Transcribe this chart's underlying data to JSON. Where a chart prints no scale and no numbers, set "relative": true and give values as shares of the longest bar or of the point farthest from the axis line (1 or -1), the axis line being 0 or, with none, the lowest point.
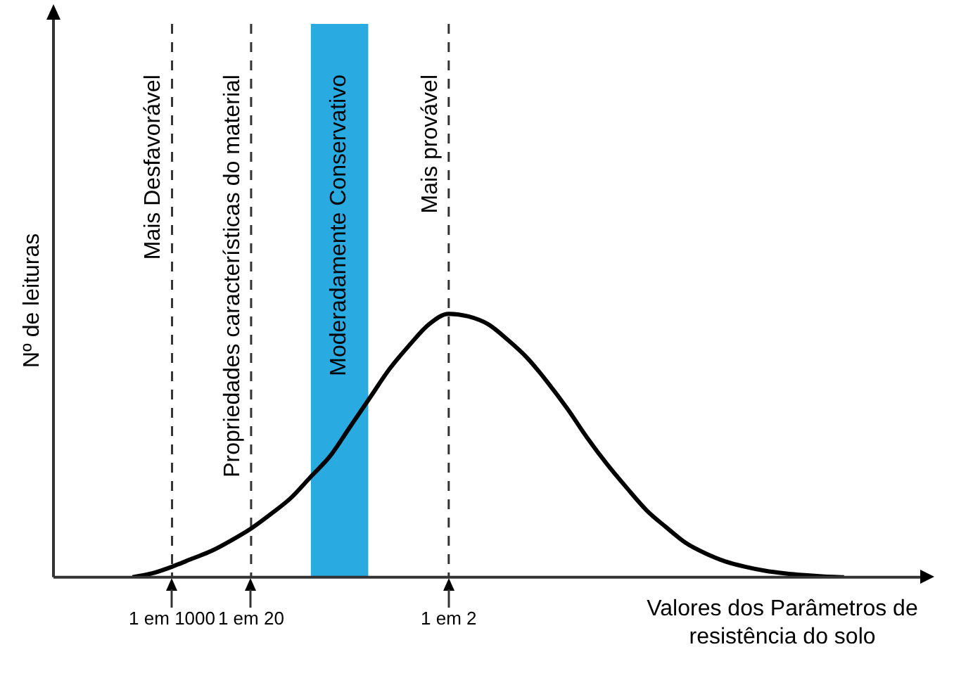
{
  "chart_data": {
    "type": "line",
    "relative": true,
    "xlabel": "Valores dos Parâmetros de resistência do solo",
    "ylabel": "Nº de leituras",
    "tick_labels": "x",
    "marker": "none",
    "line_style": "solid",
    "categories": [
      null,
      null,
      null,
      null,
      null,
      null,
      "1 em 1000",
      null,
      null,
      null,
      "1 em 20",
      null,
      null,
      null,
      null,
      null,
      null,
      null,
      null,
      null,
      "1 em 2",
      null,
      null,
      null,
      null,
      null,
      null,
      null,
      null,
      null,
      null,
      null,
      null,
      null,
      null,
      null,
      null,
      null,
      null,
      null,
      null,
      null,
      null,
      null,
      null
    ],
    "series": [
      {
        "color": "#000000",
        "values": [
          null,
          null,
          null,
          null,
          0,
          0.015,
          0.04,
          0.07,
          0.1,
          0.14,
          0.185,
          0.24,
          0.3,
          0.38,
          0.46,
          0.57,
          0.68,
          0.79,
          0.88,
          0.96,
          1,
          0.99,
          0.96,
          0.9,
          0.83,
          0.74,
          0.64,
          0.53,
          0.43,
          0.34,
          0.255,
          0.19,
          0.13,
          0.09,
          0.06,
          0.04,
          0.025,
          0.015,
          0.008,
          0.003,
          0,
          null,
          null,
          null,
          null
        ]
      }
    ],
    "ref_lines": [
      {
        "axis": "x",
        "value": "1 em 1000",
        "label": "Mais Desfavorável",
        "line_style": "dashed",
        "color": "#333333"
      },
      {
        "axis": "x",
        "value": "1 em 20",
        "label": "Propriedades características do material",
        "line_style": "dashed",
        "color": "#333333"
      },
      {
        "axis": "x",
        "value": "1 em 2",
        "label": "Mais provável",
        "line_style": "dashed",
        "color": "#333333"
      }
    ],
    "annotations": [
      "Moderadamente Conservativo"
    ]
  }
}
